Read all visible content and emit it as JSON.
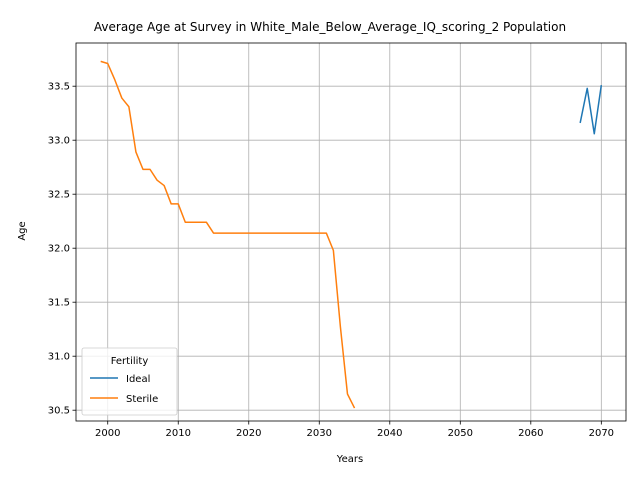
{
  "chart_data": {
    "type": "line",
    "title": "Average Age at Survey in White_Male_Below_Average_IQ_scoring_2 Population",
    "xlabel": "Years",
    "ylabel": "Age",
    "xlim": [
      1995.5,
      2073.5
    ],
    "ylim": [
      30.4,
      33.9
    ],
    "xticks": [
      2000,
      2010,
      2020,
      2030,
      2040,
      2050,
      2060,
      2070
    ],
    "yticks": [
      30.5,
      31.0,
      31.5,
      32.0,
      32.5,
      33.0,
      33.5
    ],
    "ytick_labels": [
      "30.5",
      "31.0",
      "31.5",
      "32.0",
      "32.5",
      "33.0",
      "33.5"
    ],
    "grid": true,
    "legend": {
      "title": "Fertility",
      "placement": "lower-left"
    },
    "series": [
      {
        "name": "Ideal",
        "color": "#1f77b4",
        "x": [
          2067,
          2068,
          2069,
          2070
        ],
        "y": [
          33.16,
          33.48,
          33.06,
          33.51
        ]
      },
      {
        "name": "Sterile",
        "color": "#ff7f0e",
        "x": [
          1999,
          2000,
          2001,
          2002,
          2003,
          2004,
          2005,
          2006,
          2007,
          2008,
          2009,
          2010,
          2011,
          2012,
          2013,
          2014,
          2015,
          2016,
          2017,
          2018,
          2019,
          2020,
          2021,
          2022,
          2023,
          2024,
          2025,
          2026,
          2027,
          2028,
          2029,
          2030,
          2031,
          2032,
          2033,
          2034,
          2035
        ],
        "y": [
          33.73,
          33.71,
          33.56,
          33.39,
          33.31,
          32.89,
          32.73,
          32.73,
          32.63,
          32.58,
          32.41,
          32.41,
          32.24,
          32.24,
          32.24,
          32.24,
          32.14,
          32.14,
          32.14,
          32.14,
          32.14,
          32.14,
          32.14,
          32.14,
          32.14,
          32.14,
          32.14,
          32.14,
          32.14,
          32.14,
          32.14,
          32.14,
          32.14,
          31.98,
          31.27,
          30.65,
          30.52
        ]
      }
    ]
  }
}
